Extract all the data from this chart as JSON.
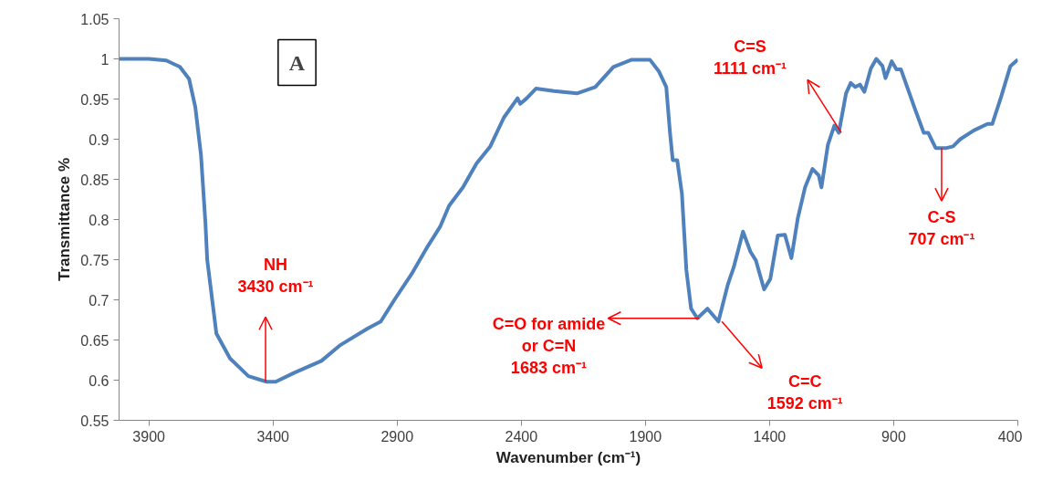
{
  "chart_data": {
    "type": "line",
    "xlabel": "Wavenumber (cm⁻¹)",
    "ylabel": "Transmittance %",
    "xlim": [
      4020,
      400
    ],
    "xticks": [
      3900,
      3400,
      2900,
      2400,
      1900,
      1400,
      900,
      400
    ],
    "ylim": [
      0.55,
      1.05
    ],
    "yticks": [
      0.55,
      0.6,
      0.65,
      0.7,
      0.75,
      0.8,
      0.85,
      0.9,
      0.95,
      1,
      1.05
    ],
    "grid": false,
    "line_style": "solid",
    "marker": "none",
    "series": [
      {
        "color": "#4f81bd",
        "x": [
          4020,
          3900,
          3830,
          3775,
          3738,
          3713,
          3690,
          3672,
          3665,
          3628,
          3573,
          3499,
          3426,
          3389,
          3316,
          3205,
          3132,
          3021,
          2966,
          2911,
          2838,
          2782,
          2727,
          2691,
          2635,
          2580,
          2525,
          2470,
          2415,
          2404,
          2378,
          2341,
          2268,
          2176,
          2102,
          2029,
          1955,
          1882,
          1845,
          1816,
          1801,
          1790,
          1772,
          1753,
          1735,
          1716,
          1691,
          1650,
          1606,
          1569,
          1544,
          1507,
          1477,
          1455,
          1422,
          1397,
          1367,
          1338,
          1312,
          1286,
          1257,
          1227,
          1202,
          1191,
          1165,
          1139,
          1121,
          1092,
          1073,
          1055,
          1036,
          1018,
          992,
          970,
          945,
          933,
          908,
          889,
          871,
          816,
          779,
          761,
          731,
          687,
          661,
          632,
          577,
          522,
          503,
          467,
          430,
          400
        ],
        "values": [
          1.0,
          1.0,
          0.998,
          0.99,
          0.975,
          0.94,
          0.88,
          0.795,
          0.75,
          0.658,
          0.627,
          0.605,
          0.598,
          0.598,
          0.609,
          0.624,
          0.643,
          0.664,
          0.673,
          0.7,
          0.734,
          0.764,
          0.791,
          0.817,
          0.84,
          0.87,
          0.891,
          0.927,
          0.951,
          0.944,
          0.951,
          0.963,
          0.96,
          0.957,
          0.965,
          0.99,
          0.999,
          0.999,
          0.984,
          0.965,
          0.908,
          0.874,
          0.874,
          0.832,
          0.737,
          0.689,
          0.677,
          0.689,
          0.673,
          0.718,
          0.741,
          0.785,
          0.76,
          0.749,
          0.713,
          0.726,
          0.78,
          0.781,
          0.752,
          0.802,
          0.84,
          0.863,
          0.855,
          0.84,
          0.893,
          0.917,
          0.908,
          0.957,
          0.97,
          0.965,
          0.968,
          0.959,
          0.988,
          1.0,
          0.991,
          0.976,
          0.997,
          0.987,
          0.987,
          0.939,
          0.908,
          0.908,
          0.889,
          0.889,
          0.891,
          0.9,
          0.911,
          0.919,
          0.919,
          0.953,
          0.991,
          0.999
        ]
      }
    ],
    "annotations": [
      "A",
      {
        "text": "NH\n3430 cm⁻¹",
        "x": 3430,
        "y": 0.598
      },
      {
        "text": "C=O for amide\nor C=N\n1683 cm⁻¹",
        "x": 1683,
        "y": 0.677
      },
      {
        "text": "C=C\n1592 cm⁻¹",
        "x": 1592,
        "y": 0.673
      },
      {
        "text": "C=S\n1111 cm⁻¹",
        "x": 1111,
        "y": 0.908
      },
      {
        "text": "C-S\n707 cm⁻¹",
        "x": 707,
        "y": 0.889
      }
    ]
  }
}
